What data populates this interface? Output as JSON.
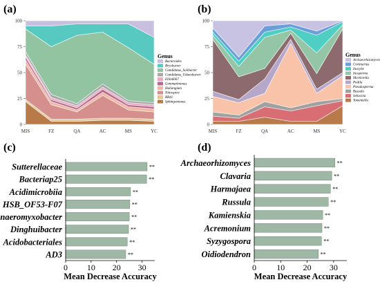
{
  "chart_data": [
    {
      "type": "area",
      "panel_label": "(a)",
      "categories": [
        "MIS",
        "FZ",
        "QA",
        "AC",
        "MS",
        "YC"
      ],
      "ylim": [
        0,
        100
      ],
      "yticks": [
        0,
        25,
        50,
        75,
        100
      ],
      "legend_title": "Genus",
      "legend_position": "right",
      "series": [
        {
          "name": "Sphingomonas",
          "color": "#b77a48",
          "values": [
            22,
            3,
            3,
            4,
            4,
            3
          ]
        },
        {
          "name": "RB41",
          "color": "#e3c79a",
          "values": [
            2,
            2,
            2,
            2,
            2,
            2
          ]
        },
        {
          "name": "Nitrospira",
          "color": "#d58f8c",
          "values": [
            34,
            14,
            7,
            22,
            8,
            7
          ]
        },
        {
          "name": "Haliangium",
          "color": "#f3b6a5",
          "values": [
            4,
            3,
            2,
            3,
            3,
            3
          ]
        },
        {
          "name": "Gemmatimonas",
          "color": "#b9688a",
          "values": [
            3,
            2,
            2,
            3,
            2,
            2
          ]
        },
        {
          "name": "Ellin6067",
          "color": "#e8aac3",
          "values": [
            2,
            2,
            2,
            2,
            2,
            2
          ]
        },
        {
          "name": "Candidatus_Udaeobacter",
          "color": "#a8a8a8",
          "values": [
            3,
            3,
            2,
            3,
            2,
            2
          ]
        },
        {
          "name": "Candidatus_Solibacter",
          "color": "#92c4a2",
          "values": [
            22,
            46,
            66,
            50,
            51,
            37
          ]
        },
        {
          "name": "Bryobacter",
          "color": "#58c9c0",
          "values": [
            3,
            20,
            11,
            8,
            23,
            26
          ]
        },
        {
          "name": "Bacteroides",
          "color": "#c9bfe0",
          "values": [
            5,
            5,
            3,
            3,
            3,
            16
          ]
        }
      ]
    },
    {
      "type": "area",
      "panel_label": "(b)",
      "categories": [
        "MIS",
        "FZ",
        "QA",
        "AC",
        "MS",
        "YC"
      ],
      "ylim": [
        0,
        100
      ],
      "yticks": [
        0,
        25,
        50,
        75,
        100
      ],
      "legend_title": "Genus",
      "legend_position": "right",
      "series": [
        {
          "name": "Tomentella",
          "color": "#b77a48",
          "values": [
            3,
            3,
            7,
            3,
            3,
            18
          ]
        },
        {
          "name": "Sebacina",
          "color": "#d86d73",
          "values": [
            5,
            3,
            10,
            10,
            15,
            5
          ]
        },
        {
          "name": "Russula",
          "color": "#a1a1a1",
          "values": [
            4,
            3,
            5,
            3,
            4,
            2
          ]
        },
        {
          "name": "Pseudosperma",
          "color": "#f8c3a8",
          "values": [
            15,
            12,
            8,
            62,
            8,
            22
          ]
        },
        {
          "name": "Podila",
          "color": "#b5a7c9",
          "values": [
            5,
            3,
            14,
            4,
            4,
            3
          ]
        },
        {
          "name": "Mortierella",
          "color": "#8c6a6e",
          "values": [
            50,
            22,
            10,
            6,
            15,
            42
          ]
        },
        {
          "name": "Inosperma",
          "color": "#94c5a6",
          "values": [
            4,
            10,
            30,
            3,
            20,
            4
          ]
        },
        {
          "name": "Inocybe",
          "color": "#4fcfc3",
          "values": [
            3,
            5,
            5,
            3,
            17,
            3
          ]
        },
        {
          "name": "Cortinarius",
          "color": "#6aa0d9",
          "values": [
            4,
            4,
            6,
            3,
            4,
            1
          ]
        },
        {
          "name": "Archaeorhizomyces",
          "color": "#c9c3e3",
          "values": [
            7,
            35,
            5,
            3,
            10,
            0
          ]
        }
      ]
    },
    {
      "type": "bar",
      "orientation": "horizontal",
      "panel_label": "(c)",
      "categories": [
        "Sutterellaceae",
        "Bacteriap25",
        "Acidimicrobiia",
        "HSB_OF53-F07",
        "Anaeromyxobacter",
        "Dinghuibacter",
        "Acidobacteriales",
        "AD3"
      ],
      "values": [
        32,
        31.8,
        25.5,
        25.2,
        25,
        24.7,
        24.2,
        23.6
      ],
      "significance": [
        "**",
        "**",
        "**",
        "**",
        "**",
        "**",
        "**",
        "**"
      ],
      "xlabel": "Mean Decrease Accuracy",
      "xlim": [
        0,
        35
      ],
      "xticks": [
        0,
        10,
        20,
        30
      ],
      "color": "#9eb8a5"
    },
    {
      "type": "bar",
      "orientation": "horizontal",
      "panel_label": "(d)",
      "categories": [
        "Archaeorhizomyces",
        "Clavaria",
        "Harmajaea",
        "Russula",
        "Kamienskia",
        "Acremonium",
        "Syzygospora",
        "Oidiodendron"
      ],
      "values": [
        30.5,
        29.3,
        28.8,
        28,
        25.9,
        25.6,
        25.4,
        24.2
      ],
      "significance": [
        "**",
        "**",
        "**",
        "**",
        "**",
        "**",
        "**",
        "**"
      ],
      "xlabel": "Mean Decrease Accuracy",
      "xlim": [
        0,
        35
      ],
      "xticks": [
        0,
        10,
        20,
        30
      ],
      "color": "#9eb8a5"
    }
  ]
}
